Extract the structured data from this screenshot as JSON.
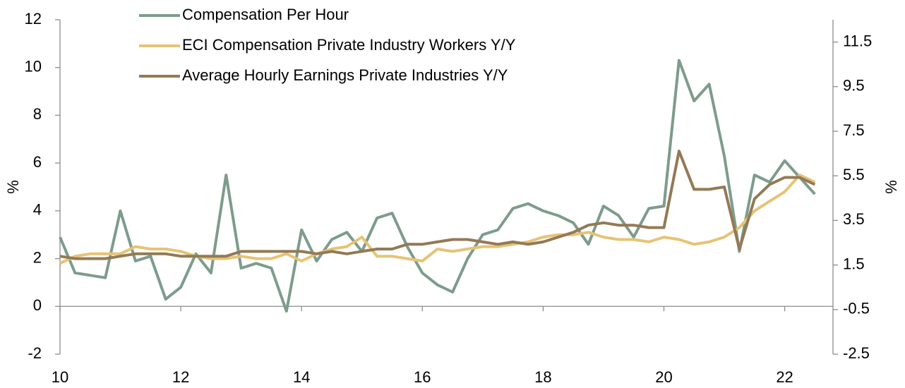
{
  "chart_data": {
    "type": "line",
    "x": [
      10,
      10.25,
      10.5,
      10.75,
      11,
      11.25,
      11.5,
      11.75,
      12,
      12.25,
      12.5,
      12.75,
      13,
      13.25,
      13.5,
      13.75,
      14,
      14.25,
      14.5,
      14.75,
      15,
      15.25,
      15.5,
      15.75,
      16,
      16.25,
      16.5,
      16.75,
      17,
      17.25,
      17.5,
      17.75,
      18,
      18.25,
      18.5,
      18.75,
      19,
      19.25,
      19.5,
      19.75,
      20,
      20.25,
      20.5,
      20.75,
      21,
      21.25,
      21.5,
      21.75,
      22,
      22.25,
      22.5
    ],
    "series": [
      {
        "name": "Compensation Per Hour",
        "color": "#7d9c8c",
        "values": [
          2.9,
          1.4,
          1.3,
          1.2,
          4.0,
          1.9,
          2.1,
          0.3,
          0.8,
          2.2,
          1.4,
          5.5,
          1.6,
          1.8,
          1.6,
          -0.2,
          3.2,
          1.9,
          2.8,
          3.1,
          2.3,
          3.7,
          3.9,
          2.5,
          1.4,
          0.9,
          0.6,
          2.0,
          3.0,
          3.2,
          4.1,
          4.3,
          4.0,
          3.8,
          3.5,
          2.6,
          4.2,
          3.8,
          2.9,
          4.1,
          4.2,
          10.3,
          8.6,
          9.3,
          6.3,
          2.3,
          5.5,
          5.2,
          6.1,
          5.4,
          4.7
        ]
      },
      {
        "name": "ECI Compensation Private Industry Workers Y/Y",
        "color": "#e6c375",
        "values": [
          1.8,
          2.1,
          2.2,
          2.2,
          2.2,
          2.5,
          2.4,
          2.4,
          2.3,
          2.1,
          2.0,
          2.0,
          2.1,
          2.0,
          2.0,
          2.2,
          1.9,
          2.2,
          2.4,
          2.5,
          2.9,
          2.1,
          2.1,
          2.0,
          1.9,
          2.4,
          2.3,
          2.4,
          2.5,
          2.5,
          2.6,
          2.7,
          2.9,
          3.0,
          3.0,
          3.1,
          2.9,
          2.8,
          2.8,
          2.7,
          2.9,
          2.8,
          2.6,
          2.7,
          2.9,
          3.3,
          4.0,
          4.4,
          4.8,
          5.5,
          5.2
        ]
      },
      {
        "name": "Average Hourly Earnings Private Industries Y/Y",
        "color": "#937a55",
        "values": [
          2.1,
          2.0,
          2.0,
          2.0,
          2.1,
          2.2,
          2.2,
          2.2,
          2.1,
          2.1,
          2.1,
          2.1,
          2.3,
          2.3,
          2.3,
          2.3,
          2.3,
          2.2,
          2.3,
          2.2,
          2.3,
          2.4,
          2.4,
          2.6,
          2.6,
          2.7,
          2.8,
          2.8,
          2.7,
          2.6,
          2.7,
          2.6,
          2.7,
          2.9,
          3.1,
          3.4,
          3.5,
          3.4,
          3.4,
          3.3,
          3.3,
          6.5,
          4.9,
          4.9,
          5.0,
          2.4,
          4.5,
          5.1,
          5.4,
          5.4,
          5.1
        ]
      }
    ],
    "ylabel": "%",
    "y2label": "%",
    "xlim": [
      10,
      22.8
    ],
    "xticks": [
      10,
      12,
      14,
      16,
      18,
      20,
      22
    ],
    "ylim": [
      -2,
      12
    ],
    "yticks": [
      -2,
      0,
      2,
      4,
      6,
      8,
      10,
      12
    ],
    "y2lim": [
      -2.5,
      12.5
    ],
    "y2ticks": [
      -2.5,
      -0.5,
      1.5,
      3.5,
      5.5,
      7.5,
      9.5,
      11.5
    ]
  }
}
